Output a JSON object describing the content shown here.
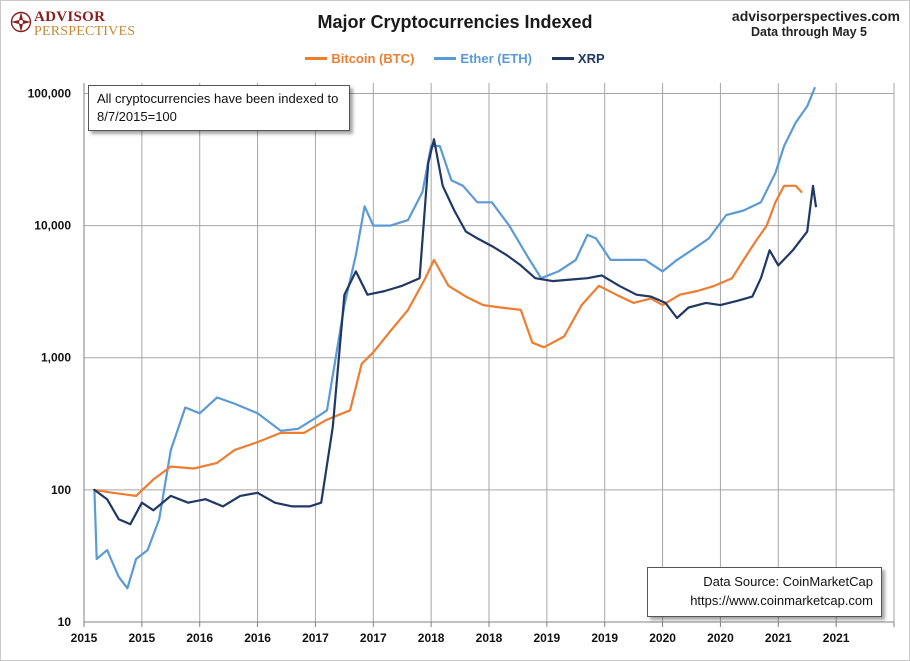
{
  "header": {
    "logo_top": "ADVISOR",
    "logo_bottom": "PERSPECTIVES",
    "source_site": "advisorperspectives.com",
    "source_date": "Data through May 5"
  },
  "colors": {
    "btc": "#ed7d31",
    "eth": "#5b9bd5",
    "xrp": "#1f3864",
    "grid": "#a6a6a6",
    "axis": "#808080",
    "logo_red": "#8b1d1d",
    "logo_gold": "#c48a3a"
  },
  "note": {
    "line1": "All cryptocurrencies have been indexed to",
    "line2": "8/7/2015=100"
  },
  "data_source": {
    "line1": "Data Source: CoinMarketCap",
    "line2": "https://www.coinmarketcap.com"
  },
  "chart_data": {
    "type": "line",
    "title": "Major Cryptocurrencies  Indexed",
    "xlabel": "",
    "ylabel": "",
    "yscale": "log",
    "ylim": [
      10,
      120000
    ],
    "y_ticks": [
      10,
      100,
      1000,
      10000,
      100000
    ],
    "y_tick_labels": [
      "10",
      "100",
      "1,000",
      "10,000",
      "100,000"
    ],
    "x_tick_labels": [
      "2015",
      "2015",
      "2016",
      "2016",
      "2017",
      "2017",
      "2018",
      "2018",
      "2019",
      "2019",
      "2020",
      "2020",
      "2021",
      "2021"
    ],
    "grid": true,
    "legend_position": "top-center",
    "series": [
      {
        "name": "Bitcoin (BTC)",
        "color_key": "btc",
        "points": [
          [
            0.18,
            100
          ],
          [
            0.5,
            95
          ],
          [
            0.9,
            90
          ],
          [
            1.2,
            120
          ],
          [
            1.5,
            150
          ],
          [
            1.9,
            145
          ],
          [
            2.3,
            160
          ],
          [
            2.6,
            200
          ],
          [
            3.0,
            230
          ],
          [
            3.4,
            270
          ],
          [
            3.8,
            270
          ],
          [
            4.2,
            340
          ],
          [
            4.6,
            400
          ],
          [
            4.8,
            900
          ],
          [
            5.0,
            1100
          ],
          [
            5.3,
            1600
          ],
          [
            5.6,
            2300
          ],
          [
            5.9,
            4000
          ],
          [
            6.05,
            5500
          ],
          [
            6.3,
            3500
          ],
          [
            6.6,
            2900
          ],
          [
            6.9,
            2500
          ],
          [
            7.2,
            2400
          ],
          [
            7.55,
            2300
          ],
          [
            7.75,
            1300
          ],
          [
            7.95,
            1200
          ],
          [
            8.3,
            1450
          ],
          [
            8.6,
            2500
          ],
          [
            8.9,
            3500
          ],
          [
            9.2,
            3000
          ],
          [
            9.5,
            2600
          ],
          [
            9.8,
            2800
          ],
          [
            10.0,
            2500
          ],
          [
            10.3,
            3000
          ],
          [
            10.6,
            3200
          ],
          [
            10.9,
            3500
          ],
          [
            11.2,
            4000
          ],
          [
            11.4,
            5500
          ],
          [
            11.6,
            7500
          ],
          [
            11.8,
            10000
          ],
          [
            11.95,
            15000
          ],
          [
            12.1,
            20000
          ],
          [
            12.3,
            20000
          ],
          [
            12.4,
            18000
          ]
        ]
      },
      {
        "name": "Ether (ETH)",
        "color_key": "eth",
        "points": [
          [
            0.18,
            100
          ],
          [
            0.22,
            30
          ],
          [
            0.4,
            35
          ],
          [
            0.6,
            22
          ],
          [
            0.75,
            18
          ],
          [
            0.9,
            30
          ],
          [
            1.1,
            35
          ],
          [
            1.3,
            60
          ],
          [
            1.5,
            200
          ],
          [
            1.75,
            420
          ],
          [
            2.0,
            380
          ],
          [
            2.3,
            500
          ],
          [
            2.6,
            450
          ],
          [
            3.0,
            380
          ],
          [
            3.4,
            280
          ],
          [
            3.7,
            290
          ],
          [
            4.0,
            350
          ],
          [
            4.2,
            400
          ],
          [
            4.35,
            1000
          ],
          [
            4.5,
            2500
          ],
          [
            4.7,
            6000
          ],
          [
            4.85,
            14000
          ],
          [
            5.0,
            10000
          ],
          [
            5.3,
            10000
          ],
          [
            5.6,
            11000
          ],
          [
            5.85,
            18000
          ],
          [
            6.0,
            40000
          ],
          [
            6.15,
            40000
          ],
          [
            6.35,
            22000
          ],
          [
            6.55,
            20000
          ],
          [
            6.8,
            15000
          ],
          [
            7.05,
            15000
          ],
          [
            7.35,
            10000
          ],
          [
            7.65,
            6000
          ],
          [
            7.9,
            4000
          ],
          [
            8.2,
            4500
          ],
          [
            8.5,
            5500
          ],
          [
            8.7,
            8500
          ],
          [
            8.85,
            8000
          ],
          [
            9.1,
            5500
          ],
          [
            9.4,
            5500
          ],
          [
            9.7,
            5500
          ],
          [
            10.0,
            4500
          ],
          [
            10.25,
            5500
          ],
          [
            10.5,
            6500
          ],
          [
            10.8,
            8000
          ],
          [
            11.1,
            12000
          ],
          [
            11.4,
            13000
          ],
          [
            11.7,
            15000
          ],
          [
            11.95,
            25000
          ],
          [
            12.1,
            40000
          ],
          [
            12.3,
            60000
          ],
          [
            12.5,
            80000
          ],
          [
            12.63,
            110000
          ]
        ]
      },
      {
        "name": "XRP",
        "color_key": "xrp",
        "points": [
          [
            0.18,
            100
          ],
          [
            0.4,
            85
          ],
          [
            0.6,
            60
          ],
          [
            0.8,
            55
          ],
          [
            1.0,
            80
          ],
          [
            1.2,
            70
          ],
          [
            1.5,
            90
          ],
          [
            1.8,
            80
          ],
          [
            2.1,
            85
          ],
          [
            2.4,
            75
          ],
          [
            2.7,
            90
          ],
          [
            3.0,
            95
          ],
          [
            3.3,
            80
          ],
          [
            3.6,
            75
          ],
          [
            3.9,
            75
          ],
          [
            4.1,
            80
          ],
          [
            4.3,
            300
          ],
          [
            4.5,
            3000
          ],
          [
            4.7,
            4500
          ],
          [
            4.9,
            3000
          ],
          [
            5.2,
            3200
          ],
          [
            5.5,
            3500
          ],
          [
            5.8,
            4000
          ],
          [
            5.95,
            30000
          ],
          [
            6.05,
            45000
          ],
          [
            6.2,
            20000
          ],
          [
            6.4,
            13000
          ],
          [
            6.6,
            9000
          ],
          [
            6.8,
            8000
          ],
          [
            7.05,
            7000
          ],
          [
            7.3,
            6000
          ],
          [
            7.55,
            5000
          ],
          [
            7.8,
            4000
          ],
          [
            8.1,
            3800
          ],
          [
            8.4,
            3900
          ],
          [
            8.7,
            4000
          ],
          [
            8.95,
            4200
          ],
          [
            9.25,
            3500
          ],
          [
            9.55,
            3000
          ],
          [
            9.8,
            2900
          ],
          [
            10.05,
            2600
          ],
          [
            10.25,
            2000
          ],
          [
            10.45,
            2400
          ],
          [
            10.75,
            2600
          ],
          [
            11.0,
            2500
          ],
          [
            11.3,
            2700
          ],
          [
            11.55,
            2900
          ],
          [
            11.7,
            4000
          ],
          [
            11.85,
            6500
          ],
          [
            12.0,
            5000
          ],
          [
            12.25,
            6500
          ],
          [
            12.5,
            9000
          ],
          [
            12.6,
            20000
          ],
          [
            12.65,
            14000
          ]
        ]
      }
    ]
  }
}
